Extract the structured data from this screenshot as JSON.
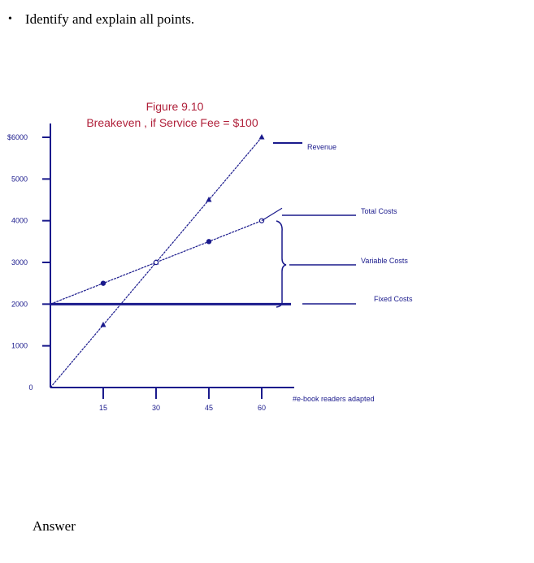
{
  "question": {
    "bullet": "•",
    "text": "Identify and explain all points."
  },
  "answer_label": "Answer",
  "chart_data": {
    "type": "line",
    "title": "Figure 9.10",
    "subtitle": "Breakeven , if Service Fee = $100",
    "xlabel": "#e-book readers adapted",
    "ylabel": "",
    "xlim": [
      0,
      60
    ],
    "ylim": [
      0,
      6000
    ],
    "x_ticks": [
      15,
      30,
      45,
      60
    ],
    "x_tick_labels": [
      "15",
      "30",
      "45",
      "60"
    ],
    "y_ticks": [
      0,
      1000,
      2000,
      3000,
      4000,
      5000,
      6000
    ],
    "y_tick_labels": [
      "0",
      "1000",
      "2000",
      "3000",
      "4000",
      "5000",
      "$6000"
    ],
    "series": [
      {
        "name": "Revenue",
        "x": [
          0,
          15,
          30,
          45,
          60
        ],
        "y": [
          0,
          1500,
          3000,
          4500,
          6000
        ]
      },
      {
        "name": "Total Costs",
        "x": [
          0,
          15,
          30,
          45,
          60
        ],
        "y": [
          2000,
          2500,
          3000,
          3500,
          4000
        ]
      },
      {
        "name": "Fixed Costs",
        "x": [
          0,
          60
        ],
        "y": [
          2000,
          2000
        ]
      }
    ],
    "annotations": {
      "revenue": "Revenue",
      "total_costs": "Total Costs",
      "variable_costs": "Variable Costs",
      "fixed_costs": "Fixed Costs"
    },
    "colors": {
      "line": "#1a1a8c",
      "title": "#b0203a"
    }
  }
}
